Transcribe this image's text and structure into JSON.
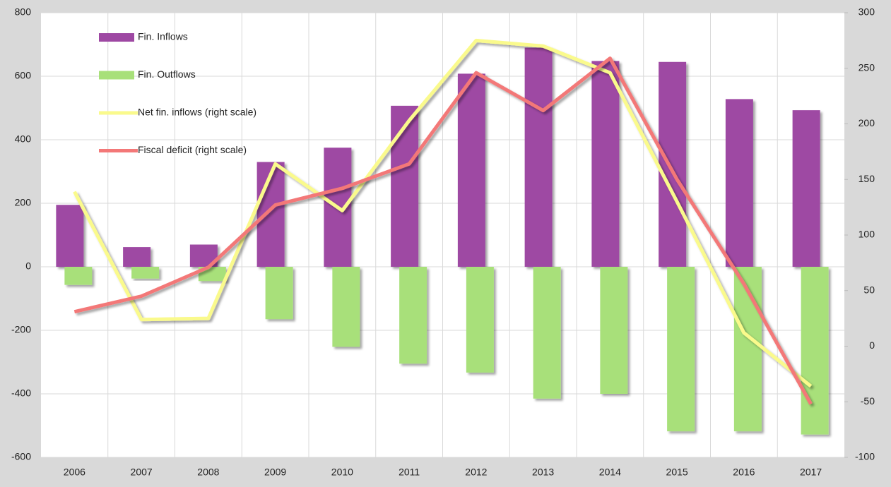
{
  "chart_data": {
    "type": "bar-line",
    "categories": [
      "2006",
      "2007",
      "2008",
      "2009",
      "2010",
      "2011",
      "2012",
      "2013",
      "2014",
      "2015",
      "2016",
      "2017"
    ],
    "series": [
      {
        "name": "Fin. Inflows",
        "type": "bar",
        "color": "#9e48a3",
        "values": [
          195,
          62,
          70,
          330,
          375,
          507,
          608,
          690,
          648,
          645,
          528,
          493
        ]
      },
      {
        "name": "Fin. Outflows",
        "type": "bar",
        "color": "#a8e07a",
        "values": [
          -57,
          -37,
          -45,
          -165,
          -252,
          -305,
          -333,
          -415,
          -400,
          -518,
          -518,
          -528
        ]
      },
      {
        "name": "Net fin. inflows (right scale)",
        "type": "line",
        "axis": "y2",
        "color": "#fafa8c",
        "values": [
          139,
          24,
          25,
          164,
          122,
          203,
          275,
          270,
          246,
          130,
          12,
          -36
        ]
      },
      {
        "name": "Fiscal deficit (right scale)",
        "type": "line",
        "axis": "y2",
        "color": "#f37878",
        "values": [
          31,
          45,
          71,
          127,
          142,
          164,
          246,
          212,
          259,
          150,
          56,
          -52
        ]
      }
    ],
    "ylim": [
      -600,
      800
    ],
    "yticks": [
      -600,
      -400,
      -200,
      0,
      200,
      400,
      600,
      800
    ],
    "y2lim": [
      -100,
      300
    ],
    "y2ticks": [
      -100,
      -50,
      0,
      50,
      100,
      150,
      200,
      250,
      300
    ],
    "grid": true,
    "legend": "upper left"
  }
}
